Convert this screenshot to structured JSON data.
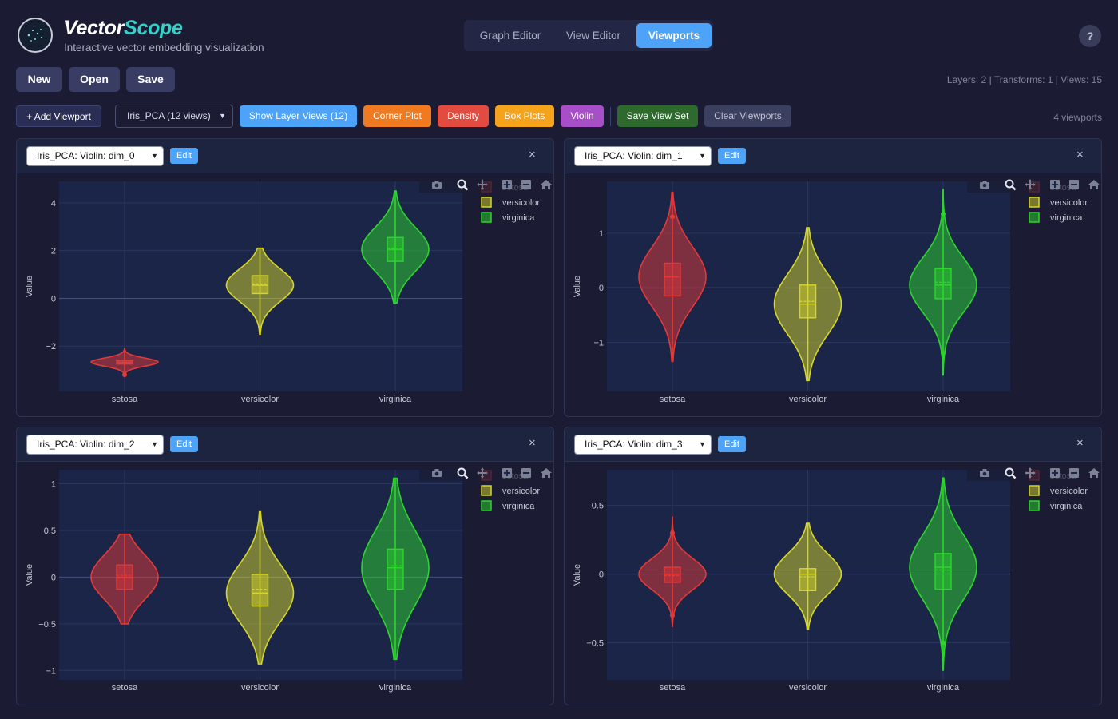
{
  "header": {
    "brand_part1": "Vector",
    "brand_part2": "Scope",
    "tagline": "Interactive vector embedding visualization",
    "nav_tabs": [
      "Graph Editor",
      "View Editor",
      "Viewports"
    ],
    "active_tab": "Viewports",
    "help_label": "?"
  },
  "toolbar1": {
    "buttons": [
      "New",
      "Open",
      "Save"
    ],
    "stats": "Layers: 2 | Transforms: 1 | Views: 15"
  },
  "toolbar2": {
    "add_viewport": "+ Add Viewport",
    "view_select": "Iris_PCA (12 views)",
    "show_layer_views": "Show Layer Views (12)",
    "corner_plot": "Corner Plot",
    "density": "Density",
    "box_plots": "Box Plots",
    "violin": "Violin",
    "save_view_set": "Save View Set",
    "clear_viewports": "Clear Viewports",
    "viewport_count": "4 viewports"
  },
  "colors": {
    "setosa": "#e23a3a",
    "versicolor": "#d6d62c",
    "virginica": "#2ed52e",
    "accent": "#4da3f7",
    "plot_bg": "#1a2547"
  },
  "viewports": [
    {
      "select_value": "Iris_PCA: Violin: dim_0",
      "edit_label": "Edit",
      "close_label": "×",
      "chart_data": {
        "type": "violin",
        "categories": [
          "setosa",
          "versicolor",
          "virginica"
        ],
        "ylabel": "Value",
        "ylim": [
          -3.9,
          4.9
        ],
        "yticks": [
          4,
          2,
          0,
          -2
        ],
        "ytick_labels": [
          "4",
          "2",
          "0",
          "−2"
        ],
        "legend": [
          "setosa",
          "versicolor",
          "virginica"
        ],
        "legend_position": "top-right",
        "series": [
          {
            "name": "setosa",
            "min": -3.3,
            "q1": -2.75,
            "median": -2.67,
            "q3": -2.6,
            "max": -2.1,
            "mean": -2.66,
            "outliers": [
              -3.2
            ]
          },
          {
            "name": "versicolor",
            "min": -1.5,
            "q1": 0.2,
            "median": 0.55,
            "q3": 0.95,
            "max": 2.1,
            "mean": 0.6,
            "outliers": []
          },
          {
            "name": "virginica",
            "min": -0.2,
            "q1": 1.55,
            "median": 2.05,
            "q3": 2.55,
            "max": 4.5,
            "mean": 2.1,
            "outliers": []
          }
        ]
      }
    },
    {
      "select_value": "Iris_PCA: Violin: dim_1",
      "edit_label": "Edit",
      "close_label": "×",
      "chart_data": {
        "type": "violin",
        "categories": [
          "setosa",
          "versicolor",
          "virginica"
        ],
        "ylabel": "Value",
        "ylim": [
          -1.9,
          1.95
        ],
        "yticks": [
          1,
          0,
          -1
        ],
        "ytick_labels": [
          "1",
          "0",
          "−1"
        ],
        "legend": [
          "setosa",
          "versicolor",
          "virginica"
        ],
        "legend_position": "top-right",
        "series": [
          {
            "name": "setosa",
            "min": -1.35,
            "q1": -0.15,
            "median": 0.2,
            "q3": 0.45,
            "max": 1.75,
            "mean": 0.2,
            "outliers": [
              1.3
            ]
          },
          {
            "name": "versicolor",
            "min": -1.7,
            "q1": -0.55,
            "median": -0.3,
            "q3": 0.05,
            "max": 1.1,
            "mean": -0.25,
            "outliers": []
          },
          {
            "name": "virginica",
            "min": -1.6,
            "q1": -0.2,
            "median": 0.05,
            "q3": 0.35,
            "max": 1.8,
            "mean": 0.1,
            "outliers": [
              1.35,
              -1.2
            ]
          }
        ]
      }
    },
    {
      "select_value": "Iris_PCA: Violin: dim_2",
      "edit_label": "Edit",
      "close_label": "×",
      "chart_data": {
        "type": "violin",
        "categories": [
          "setosa",
          "versicolor",
          "virginica"
        ],
        "ylabel": "Value",
        "ylim": [
          -1.1,
          1.15
        ],
        "yticks": [
          1,
          0.5,
          0,
          -0.5,
          -1
        ],
        "ytick_labels": [
          "1",
          "0.5",
          "0",
          "−0.5",
          "−1"
        ],
        "legend": [
          "setosa",
          "versicolor",
          "virginica"
        ],
        "legend_position": "top-right",
        "series": [
          {
            "name": "setosa",
            "min": -0.5,
            "q1": -0.13,
            "median": 0.0,
            "q3": 0.13,
            "max": 0.46,
            "mean": 0.02,
            "outliers": []
          },
          {
            "name": "versicolor",
            "min": -0.93,
            "q1": -0.31,
            "median": -0.17,
            "q3": 0.03,
            "max": 0.7,
            "mean": -0.13,
            "outliers": []
          },
          {
            "name": "virginica",
            "min": -0.88,
            "q1": -0.13,
            "median": 0.1,
            "q3": 0.3,
            "max": 1.06,
            "mean": 0.12,
            "outliers": []
          }
        ]
      }
    },
    {
      "select_value": "Iris_PCA: Violin: dim_3",
      "edit_label": "Edit",
      "close_label": "×",
      "chart_data": {
        "type": "violin",
        "categories": [
          "setosa",
          "versicolor",
          "virginica"
        ],
        "ylabel": "Value",
        "ylim": [
          -0.77,
          0.76
        ],
        "yticks": [
          0.5,
          0,
          -0.5
        ],
        "ytick_labels": [
          "0.5",
          "0",
          "−0.5"
        ],
        "legend": [
          "setosa",
          "versicolor",
          "virginica"
        ],
        "legend_position": "top-right",
        "series": [
          {
            "name": "setosa",
            "min": -0.38,
            "q1": -0.06,
            "median": 0.0,
            "q3": 0.05,
            "max": 0.42,
            "mean": -0.01,
            "outliers": [
              0.3,
              -0.3
            ]
          },
          {
            "name": "versicolor",
            "min": -0.4,
            "q1": -0.12,
            "median": 0.0,
            "q3": 0.04,
            "max": 0.37,
            "mean": -0.02,
            "outliers": []
          },
          {
            "name": "virginica",
            "min": -0.7,
            "q1": -0.11,
            "median": 0.05,
            "q3": 0.15,
            "max": 0.7,
            "mean": 0.03,
            "outliers": [
              -0.5
            ]
          }
        ]
      }
    }
  ]
}
